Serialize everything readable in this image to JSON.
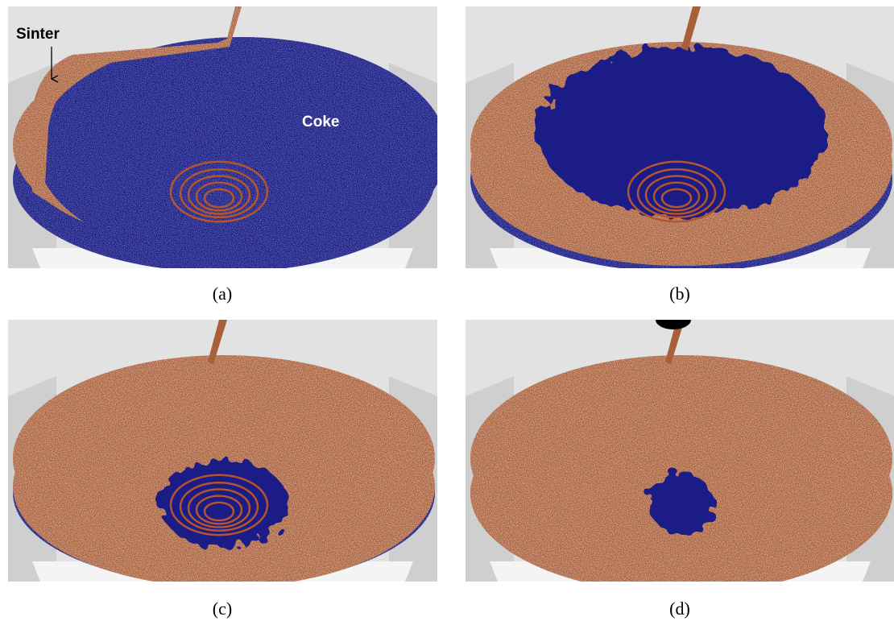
{
  "panels": [
    {
      "label": "(a)",
      "annotations": {
        "sinter": "Sinter",
        "coke": "Coke"
      }
    },
    {
      "label": "(b)"
    },
    {
      "label": "(c)"
    },
    {
      "label": "(d)"
    }
  ]
}
